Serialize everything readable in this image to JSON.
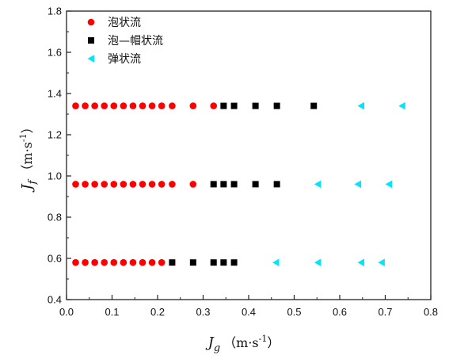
{
  "chart_data": {
    "type": "scatter",
    "xlabel": {
      "symbol": "J",
      "sub": "g",
      "unit_open": "（m·s",
      "unit_exp": "-1",
      "unit_close": "）"
    },
    "ylabel": {
      "symbol": "J",
      "sub": "f",
      "unit_open": "（m·s",
      "unit_exp": "-1",
      "unit_close": "）"
    },
    "xlim": [
      0.0,
      0.8
    ],
    "ylim": [
      0.4,
      1.8
    ],
    "xticks": [
      "0.0",
      "0.1",
      "0.2",
      "0.3",
      "0.4",
      "0.5",
      "0.6",
      "0.7",
      "0.8"
    ],
    "yticks": [
      "0.4",
      "0.6",
      "0.8",
      "1.0",
      "1.2",
      "1.4",
      "1.6",
      "1.8"
    ],
    "legend_position": "top-left",
    "series": [
      {
        "name": "泡状流",
        "marker": "circle",
        "color": "#ff0000",
        "points": [
          [
            0.02,
            1.34
          ],
          [
            0.041,
            1.34
          ],
          [
            0.062,
            1.34
          ],
          [
            0.083,
            1.34
          ],
          [
            0.104,
            1.34
          ],
          [
            0.125,
            1.34
          ],
          [
            0.146,
            1.34
          ],
          [
            0.167,
            1.34
          ],
          [
            0.188,
            1.34
          ],
          [
            0.209,
            1.34
          ],
          [
            0.232,
            1.34
          ],
          [
            0.278,
            1.34
          ],
          [
            0.323,
            1.34
          ],
          [
            0.02,
            0.96
          ],
          [
            0.041,
            0.96
          ],
          [
            0.062,
            0.96
          ],
          [
            0.083,
            0.96
          ],
          [
            0.104,
            0.96
          ],
          [
            0.125,
            0.96
          ],
          [
            0.146,
            0.96
          ],
          [
            0.167,
            0.96
          ],
          [
            0.188,
            0.96
          ],
          [
            0.209,
            0.96
          ],
          [
            0.232,
            0.96
          ],
          [
            0.278,
            0.96
          ],
          [
            0.02,
            0.58
          ],
          [
            0.041,
            0.58
          ],
          [
            0.062,
            0.58
          ],
          [
            0.083,
            0.58
          ],
          [
            0.104,
            0.58
          ],
          [
            0.125,
            0.58
          ],
          [
            0.146,
            0.58
          ],
          [
            0.167,
            0.58
          ],
          [
            0.188,
            0.58
          ],
          [
            0.209,
            0.58
          ]
        ]
      },
      {
        "name": "泡—帽状流",
        "marker": "square",
        "color": "#000000",
        "points": [
          [
            0.345,
            1.34
          ],
          [
            0.368,
            1.34
          ],
          [
            0.415,
            1.34
          ],
          [
            0.462,
            1.34
          ],
          [
            0.543,
            1.34
          ],
          [
            0.323,
            0.96
          ],
          [
            0.345,
            0.96
          ],
          [
            0.368,
            0.96
          ],
          [
            0.415,
            0.96
          ],
          [
            0.462,
            0.96
          ],
          [
            0.232,
            0.58
          ],
          [
            0.278,
            0.58
          ],
          [
            0.323,
            0.58
          ],
          [
            0.345,
            0.58
          ],
          [
            0.368,
            0.58
          ]
        ]
      },
      {
        "name": "弹状流",
        "marker": "triangle-left",
        "color": "#00e5ff",
        "points": [
          [
            0.647,
            1.34
          ],
          [
            0.737,
            1.34
          ],
          [
            0.552,
            0.96
          ],
          [
            0.64,
            0.96
          ],
          [
            0.708,
            0.96
          ],
          [
            0.46,
            0.58
          ],
          [
            0.552,
            0.58
          ],
          [
            0.647,
            0.58
          ],
          [
            0.692,
            0.58
          ]
        ]
      }
    ]
  }
}
